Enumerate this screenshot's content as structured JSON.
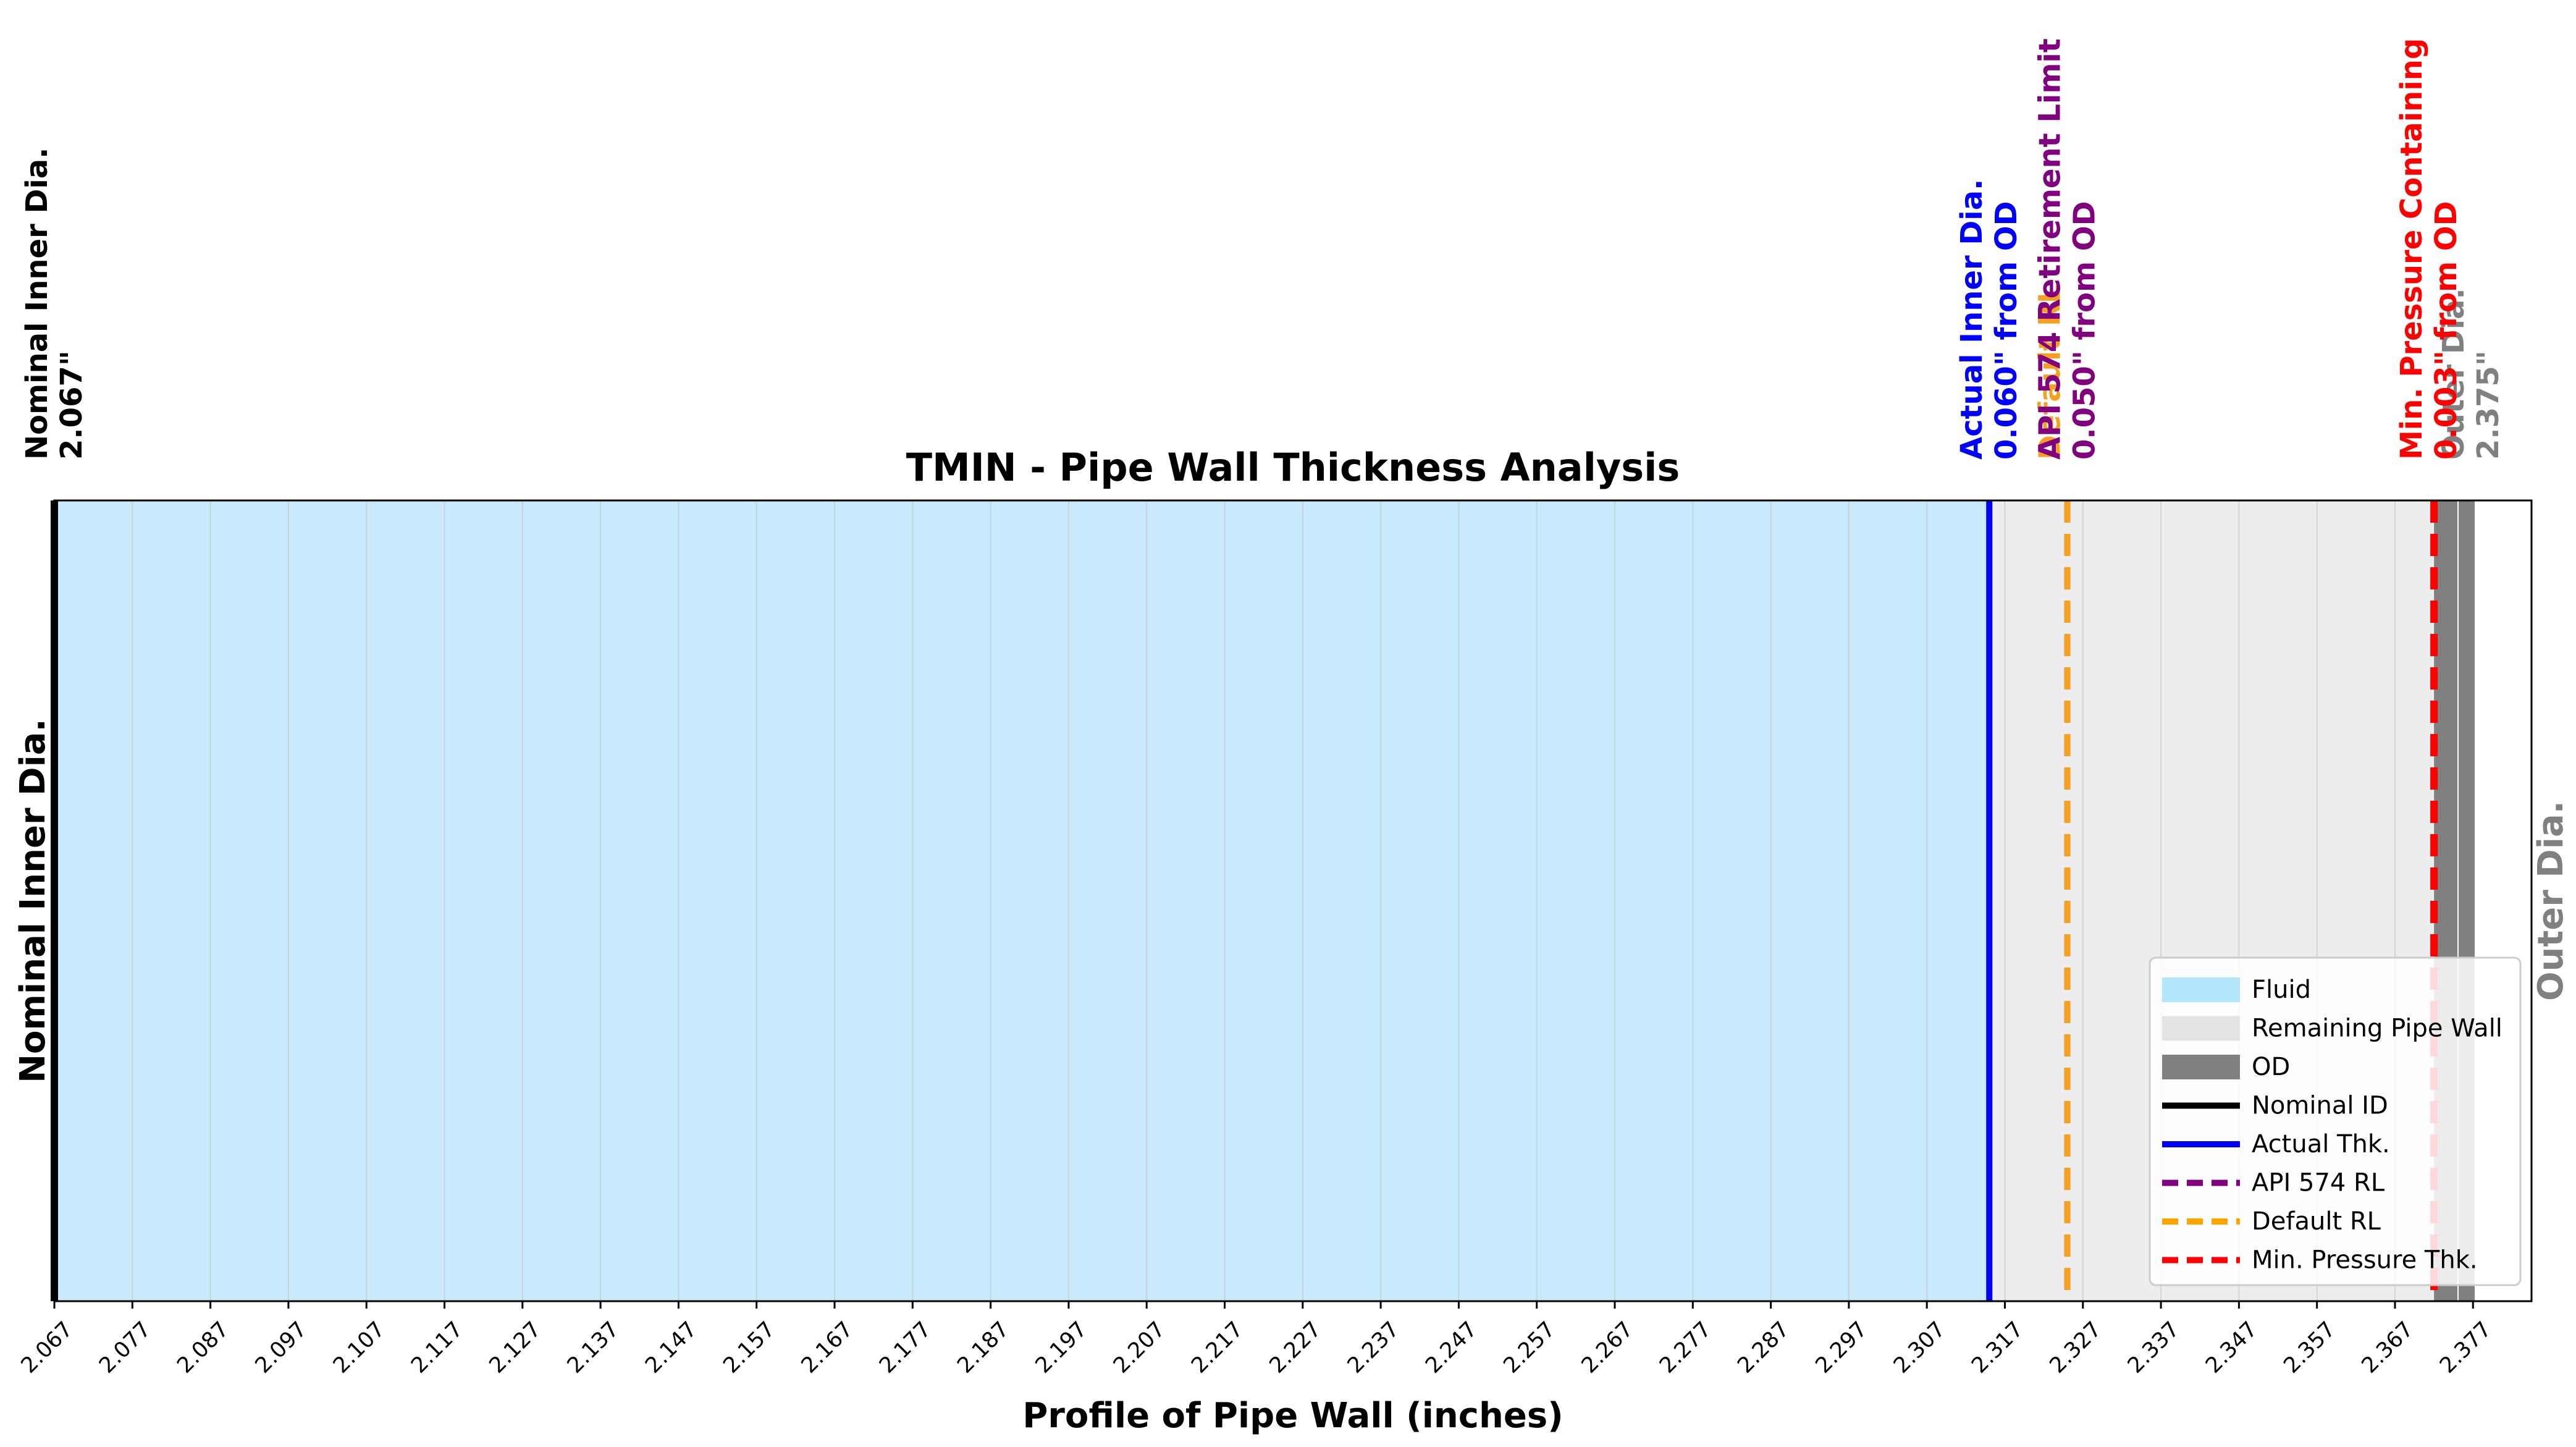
{
  "chart_data": {
    "type": "line",
    "title": "TMIN - Pipe Wall Thickness Analysis",
    "xlabel": "Profile of Pipe Wall (inches)",
    "ylabel_left": "Nominal Inner Dia.",
    "ylabel_right": "Outer Dia.",
    "xlim": [
      2.067,
      2.3845
    ],
    "xticks": [
      "2.067",
      "2.077",
      "2.087",
      "2.097",
      "2.107",
      "2.117",
      "2.127",
      "2.137",
      "2.147",
      "2.157",
      "2.167",
      "2.177",
      "2.187",
      "2.197",
      "2.207",
      "2.217",
      "2.227",
      "2.237",
      "2.247",
      "2.257",
      "2.267",
      "2.277",
      "2.287",
      "2.297",
      "2.307",
      "2.317",
      "2.327",
      "2.337",
      "2.347",
      "2.357",
      "2.367",
      "2.377"
    ],
    "grid": true,
    "regions": [
      {
        "name": "Fluid",
        "from": 2.067,
        "to": 2.315,
        "color": "#c9eafd"
      },
      {
        "name": "Remaining Pipe Wall",
        "from": 2.315,
        "to": 2.372,
        "color": "#ededed"
      },
      {
        "name": "OD",
        "from": 2.372,
        "to": 2.375,
        "color": "#808080"
      }
    ],
    "lines": [
      {
        "id": "nominal",
        "x": 2.067,
        "color": "#000000",
        "style": "solid",
        "label_lines": [
          "Nominal Inner Dia.",
          "2.067\""
        ]
      },
      {
        "id": "actual",
        "x": 2.315,
        "color": "#0000ff",
        "style": "solid",
        "label_lines": [
          "Actual Inner Dia.",
          "0.060\" from OD"
        ]
      },
      {
        "id": "default",
        "x": 2.325,
        "color": "#f5a020",
        "style": "dashed",
        "label_lines": [
          "Default RL",
          "0.050\" from OD"
        ]
      },
      {
        "id": "api",
        "x": 2.325,
        "color": "#800080",
        "style": "dashed",
        "label_lines": [
          "API 574 Retirement Limit",
          "0.050\" from OD"
        ]
      },
      {
        "id": "od",
        "x": 2.375,
        "color": "#808080",
        "style": "solid",
        "label_lines": [
          "Outer Dia.",
          "2.375\""
        ]
      },
      {
        "id": "minp",
        "x": 2.372,
        "color": "#ff0000",
        "style": "dashed",
        "label_lines": [
          "Min. Pressure Containing",
          "0.003\" from OD"
        ]
      }
    ],
    "legend": {
      "position": "lower right",
      "entries": [
        {
          "label": "Fluid",
          "kind": "patch",
          "color": "#b3e5fc"
        },
        {
          "label": "Remaining Pipe Wall",
          "kind": "patch",
          "color": "#e3e3e3"
        },
        {
          "label": "OD",
          "kind": "patch",
          "color": "#808080"
        },
        {
          "label": "Nominal ID",
          "kind": "line",
          "color": "#000000",
          "style": "solid"
        },
        {
          "label": "Actual Thk.",
          "kind": "line",
          "color": "#0000ff",
          "style": "solid"
        },
        {
          "label": "API 574 RL",
          "kind": "line",
          "color": "#800080",
          "style": "dashed"
        },
        {
          "label": "Default RL",
          "kind": "line",
          "color": "#ffa500",
          "style": "dashed"
        },
        {
          "label": "Min. Pressure Thk.",
          "kind": "line",
          "color": "#ff0000",
          "style": "dashed"
        }
      ]
    }
  }
}
